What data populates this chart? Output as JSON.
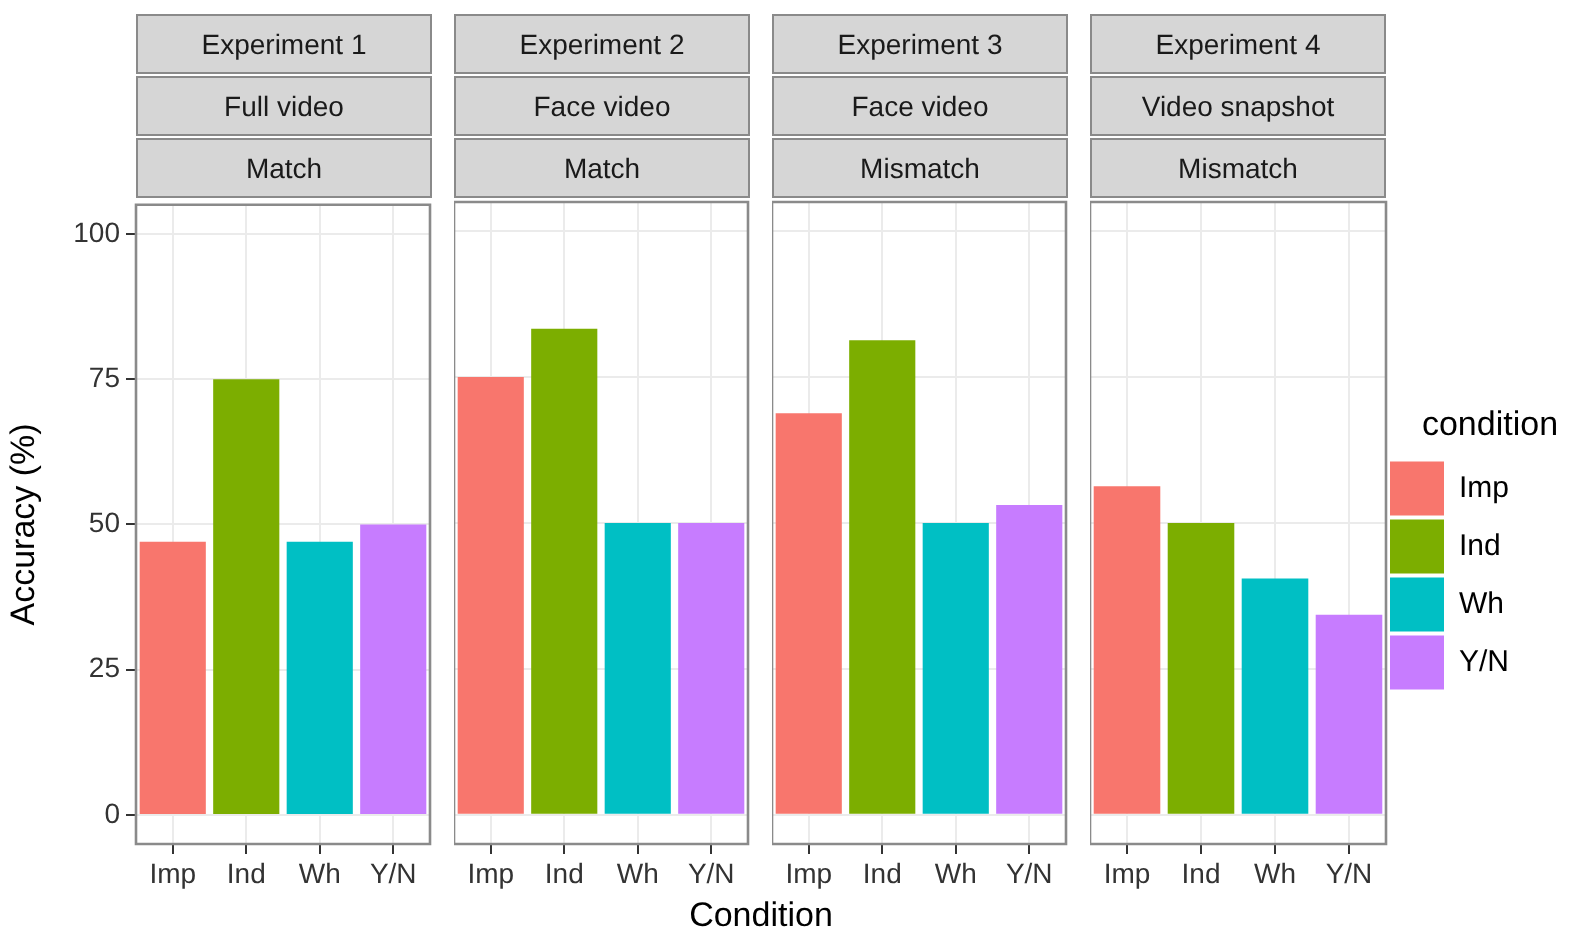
{
  "chart_data": [
    {
      "type": "bar",
      "title": "Experiment 1",
      "subtitle": "Full video",
      "annotations": [
        "Match"
      ],
      "ylabel": "Accuracy (%)",
      "categories": [
        "Imp",
        "Ind",
        "Wh",
        "Y/N"
      ],
      "series": [
        {
          "color": "#f8766d",
          "values": [
            47,
            null,
            null,
            null
          ]
        },
        {
          "color": "#7cae00",
          "values": [
            null,
            75,
            null,
            null
          ]
        },
        {
          "color": "#00bfc4",
          "values": [
            null,
            null,
            47,
            null
          ]
        },
        {
          "color": "#c77cff",
          "values": [
            null,
            null,
            null,
            50
          ]
        }
      ],
      "ylim": [
        -5,
        105
      ],
      "yticks": [
        0,
        25,
        50,
        75,
        100
      ],
      "grid": true
    },
    {
      "type": "bar",
      "title": "Experiment 2",
      "subtitle": "Face video",
      "annotations": [
        "Match"
      ],
      "xlabel": "Condition",
      "categories": [
        "Imp",
        "Ind",
        "Wh",
        "Y/N"
      ],
      "series": [
        {
          "color": "#f8766d",
          "values": [
            75,
            null,
            null,
            null
          ]
        },
        {
          "color": "#7cae00",
          "values": [
            null,
            83.3,
            null,
            null
          ]
        },
        {
          "color": "#00bfc4",
          "values": [
            null,
            null,
            50,
            null
          ]
        },
        {
          "color": "#c77cff",
          "values": [
            null,
            null,
            null,
            50
          ]
        }
      ],
      "ylim": [
        -5,
        105
      ],
      "yticks": [
        0,
        25,
        50,
        75,
        100
      ],
      "grid": true,
      "tick_labels": "x"
    },
    {
      "type": "bar",
      "title": "Experiment 3",
      "subtitle": "Face video",
      "annotations": [
        "Mismatch"
      ],
      "categories": [
        "Imp",
        "Ind",
        "Wh",
        "Y/N"
      ],
      "series": [
        {
          "color": "#f8766d",
          "values": [
            68.8,
            null,
            null,
            null
          ]
        },
        {
          "color": "#7cae00",
          "values": [
            null,
            81.3,
            null,
            null
          ]
        },
        {
          "color": "#00bfc4",
          "values": [
            null,
            null,
            50,
            null
          ]
        },
        {
          "color": "#c77cff",
          "values": [
            null,
            null,
            null,
            53.1
          ]
        }
      ],
      "ylim": [
        -5,
        105
      ],
      "yticks": [
        0,
        25,
        50,
        75,
        100
      ],
      "grid": true,
      "tick_labels": "x"
    },
    {
      "type": "bar",
      "title": "Experiment 4",
      "subtitle": "Video snapshot",
      "annotations": [
        "Mismatch"
      ],
      "categories": [
        "Imp",
        "Ind",
        "Wh",
        "Y/N"
      ],
      "series": [
        {
          "name": "Imp",
          "color": "#f8766d",
          "values": [
            56.3,
            null,
            null,
            null
          ]
        },
        {
          "name": "Ind",
          "color": "#7cae00",
          "values": [
            null,
            50,
            null,
            null
          ]
        },
        {
          "name": "Wh",
          "color": "#00bfc4",
          "values": [
            null,
            null,
            40.5,
            null
          ]
        },
        {
          "name": "Y/N",
          "color": "#c77cff",
          "values": [
            null,
            null,
            null,
            34.3
          ]
        }
      ],
      "ylim": [
        -5,
        105
      ],
      "yticks": [
        0,
        25,
        50,
        75,
        100
      ],
      "grid": true,
      "tick_labels": "x",
      "legend": "right",
      "legend_title": "condition"
    }
  ]
}
